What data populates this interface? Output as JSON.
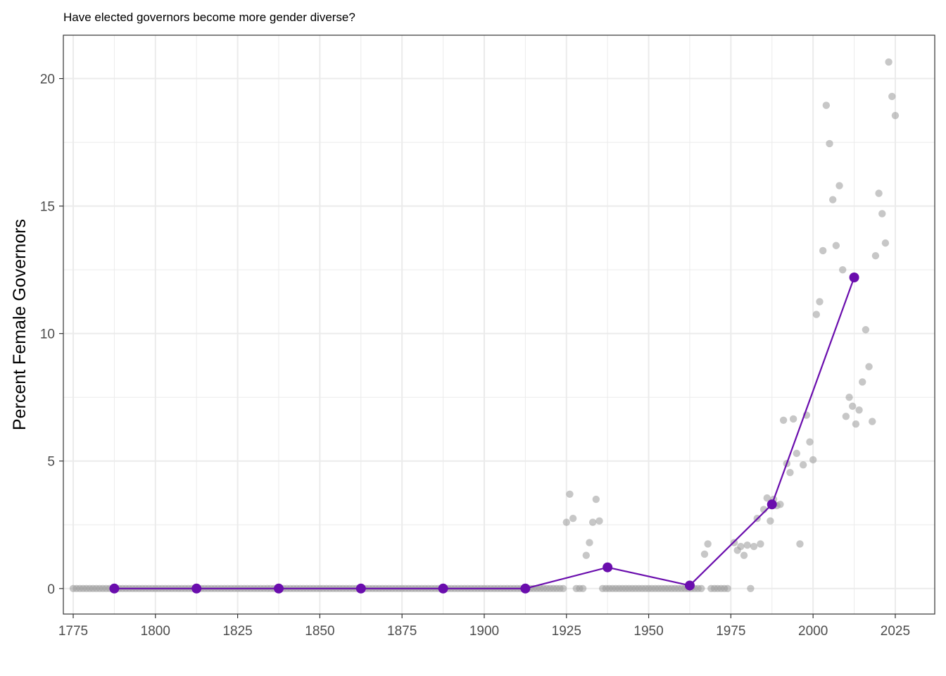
{
  "chart_data": {
    "type": "scatter",
    "title": "Have elected governors become more gender diverse?",
    "xlabel": "",
    "ylabel": "Percent Female Governors",
    "xlim": [
      1772,
      2037
    ],
    "ylim": [
      -1,
      21.7
    ],
    "x_ticks": [
      1775,
      1800,
      1825,
      1850,
      1875,
      1900,
      1925,
      1950,
      1975,
      2000,
      2025
    ],
    "x_tick_labels": [
      "1775",
      "1800",
      "1825",
      "1850",
      "1875",
      "1900",
      "1925",
      "1950",
      "1975",
      "2000",
      "2025"
    ],
    "y_ticks": [
      0,
      5,
      10,
      15,
      20
    ],
    "y_tick_labels": [
      "0",
      "5",
      "10",
      "15",
      "20"
    ],
    "grid": true,
    "colors": {
      "annual_points": "#999999",
      "trend_line": "#6a0dad",
      "grid": "#ebebeb",
      "panel_border": "#333333"
    },
    "series": [
      {
        "kind": "points",
        "zero_runs": [
          [
            1775,
            1924
          ],
          [
            1928,
            1930
          ],
          [
            1936,
            1966
          ],
          [
            1969,
            1974
          ]
        ],
        "x": [
          1925,
          1926,
          1927,
          1931,
          1932,
          1933,
          1934,
          1935,
          1967,
          1968,
          1976,
          1977,
          1978,
          1979,
          1980,
          1981,
          1982,
          1983,
          1984,
          1985,
          1986,
          1987,
          1988,
          1989,
          1990,
          1991,
          1992,
          1993,
          1994,
          1995,
          1996,
          1997,
          1998,
          1999,
          2000,
          2001,
          2002,
          2003,
          2004,
          2005,
          2006,
          2007,
          2008,
          2009,
          2010,
          2011,
          2012,
          2013,
          2014,
          2015,
          2016,
          2017,
          2018,
          2019,
          2020,
          2021,
          2022,
          2023,
          2024,
          2025
        ],
        "y": [
          2.6,
          3.7,
          2.75,
          1.3,
          1.8,
          2.6,
          3.5,
          2.65,
          1.35,
          1.75,
          1.8,
          1.5,
          1.65,
          1.3,
          1.7,
          0.0,
          1.65,
          2.75,
          1.75,
          3.1,
          3.55,
          2.65,
          3.5,
          3.25,
          3.3,
          6.6,
          4.9,
          4.55,
          6.65,
          5.3,
          1.75,
          4.85,
          6.8,
          5.75,
          5.05,
          10.75,
          11.25,
          13.25,
          18.95,
          17.45,
          15.25,
          13.45,
          15.8,
          12.5,
          6.75,
          7.5,
          7.15,
          6.45,
          7.0,
          8.1,
          10.15,
          8.7,
          6.55,
          13.05,
          15.5,
          14.7,
          13.55,
          20.65,
          19.3,
          18.55
        ]
      },
      {
        "kind": "line",
        "x": [
          1787.5,
          1812.5,
          1837.5,
          1862.5,
          1887.5,
          1912.5,
          1937.5,
          1962.5,
          1987.5,
          2012.5
        ],
        "y": [
          0,
          0,
          0,
          0,
          0,
          0,
          0.83,
          0.12,
          3.3,
          12.2
        ]
      }
    ]
  }
}
